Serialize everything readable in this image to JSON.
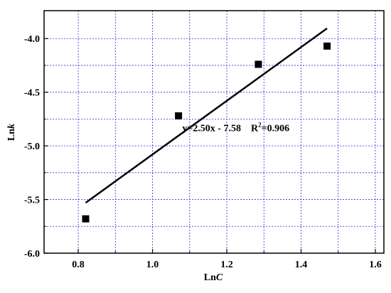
{
  "chart_data": {
    "type": "scatter",
    "xlabel": {
      "text": "Ln",
      "italic": "C"
    },
    "ylabel": {
      "text": "Ln",
      "italic": "k"
    },
    "xlim": [
      0.708,
      1.623
    ],
    "ylim": [
      -6.0,
      -3.74
    ],
    "xticks": [
      0.8,
      1.0,
      1.2,
      1.4,
      1.6
    ],
    "yticks": [
      -6.0,
      -5.5,
      -5.0,
      -4.5,
      -4.0
    ],
    "xminorticks": [
      0.9,
      1.1,
      1.3,
      1.5
    ],
    "yminorticks": [
      -5.75,
      -5.25,
      -4.75,
      -4.25
    ],
    "grid": true,
    "grid_color": "#3030d0",
    "series": [
      {
        "kind": "points",
        "color": "#000000",
        "x": [
          0.82,
          1.07,
          1.285,
          1.47
        ],
        "values": [
          -5.68,
          -4.72,
          -4.24,
          -4.07
        ]
      },
      {
        "kind": "fit",
        "color": "#000000",
        "x": [
          0.82,
          1.47
        ],
        "values": [
          -5.53,
          -3.905
        ]
      }
    ],
    "annotation": {
      "equation": "y=2.50x - 7.58",
      "r2_label": "R",
      "r2_sup": "2",
      "r2_value": "=0.906",
      "x": 1.08,
      "y": -4.83
    }
  }
}
